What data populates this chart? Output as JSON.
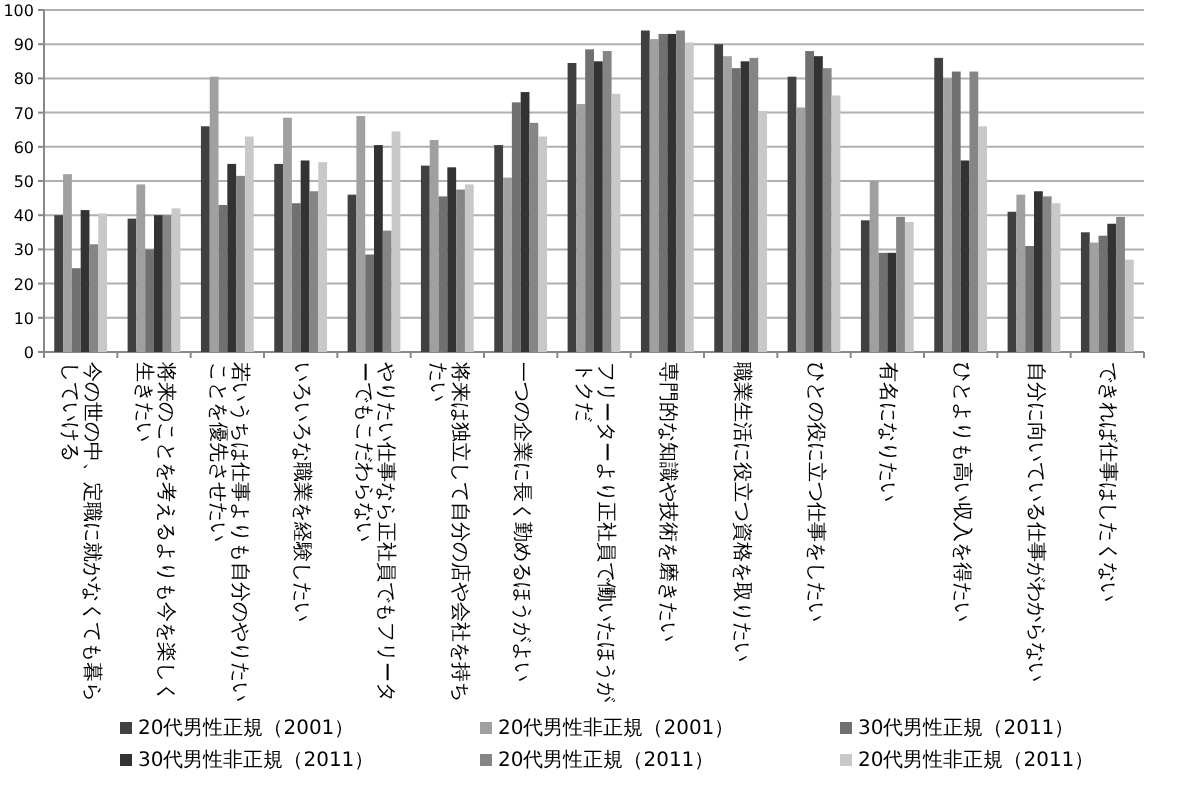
{
  "chart_data": {
    "type": "bar",
    "categories": [
      "今の世の中、定職に就かなくても暮らしていける",
      "将来のことを考えるよりも今を楽しく生きたい",
      "若いうちは仕事よりも自分のやりたいことを優先させたい",
      "いろいろな職業を経験したい",
      "やりたい仕事なら正社員でもフリーターでもこだわらない",
      "将来は独立して自分の店や会社を持ちたい",
      "一つの企業に長く勤めるほうがよい",
      "フリーターより正社員で働いたほうがトクだ",
      "専門的な知識や技術を磨きたい",
      "職業生活に役立つ資格を取りたい",
      "ひとの役に立つ仕事をしたい",
      "有名になりたい",
      "ひとよりも高い収入を得たい",
      "自分に向いている仕事がわからない",
      "できれば仕事はしたくない"
    ],
    "series": [
      {
        "name": "20代男性正規（2001）",
        "color": "#404040",
        "values": [
          40,
          39,
          66,
          55,
          46,
          54.5,
          60.5,
          84.5,
          94,
          90,
          80.5,
          38.5,
          86,
          41,
          35
        ]
      },
      {
        "name": "20代男性非正規（2001）",
        "color": "#a0a0a0",
        "values": [
          52,
          49,
          80.5,
          68.5,
          69,
          62,
          51,
          72.5,
          91.5,
          86.5,
          71.5,
          50,
          80,
          46,
          32
        ]
      },
      {
        "name": "30代男性正規（2011）",
        "color": "#707070",
        "values": [
          24.5,
          30,
          43,
          43.5,
          28.5,
          45.5,
          73,
          88.5,
          93,
          83,
          88,
          29,
          82,
          31,
          34
        ]
      },
      {
        "name": "30代男性非正規（2011）",
        "color": "#333333",
        "values": [
          41.5,
          40,
          55,
          56,
          60.5,
          54,
          76,
          85,
          93,
          85,
          86.5,
          29,
          56,
          47,
          37.5
        ]
      },
      {
        "name": "20代男性正規（2011）",
        "color": "#858585",
        "values": [
          31.5,
          40,
          51.5,
          47,
          35.5,
          47.5,
          67,
          88,
          94,
          86,
          83,
          39.5,
          82,
          45.5,
          39.5
        ]
      },
      {
        "name": "20代男性非正規（2011）",
        "color": "#c8c8c8",
        "values": [
          40.5,
          42,
          63,
          55.5,
          64.5,
          49,
          63,
          75.5,
          90.5,
          70.5,
          75,
          38,
          66,
          43.5,
          27
        ]
      }
    ],
    "ylim": [
      0,
      100
    ],
    "yticks": [
      0,
      10,
      20,
      30,
      40,
      50,
      60,
      70,
      80,
      90,
      100
    ],
    "grid": "y",
    "legend": "bottom"
  }
}
